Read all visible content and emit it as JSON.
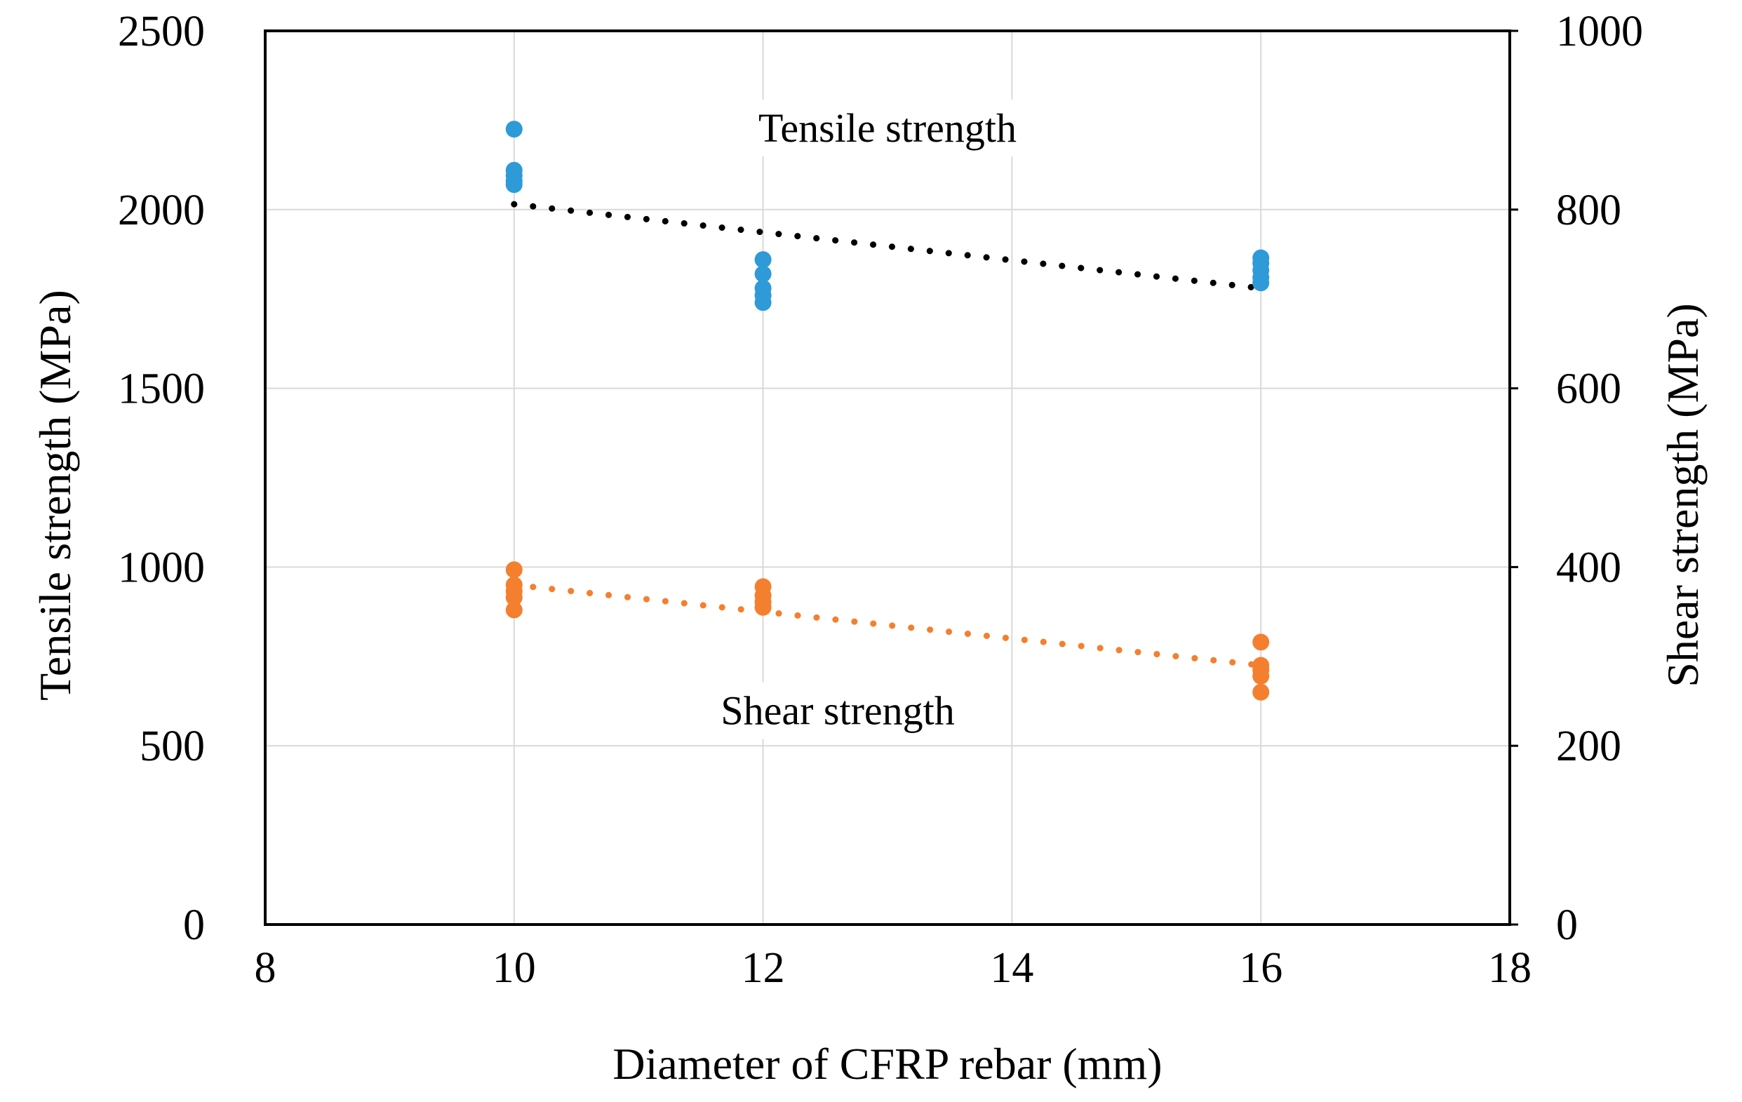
{
  "chart_data": {
    "type": "scatter",
    "title": "",
    "xlabel": "Diameter  of CFRP rebar (mm)",
    "ylabel_left": "Tensile strength (MPa)",
    "ylabel_right": "Shear strength (MPa)",
    "xlim": [
      8,
      18
    ],
    "ylim_left": [
      0,
      2500
    ],
    "ylim_right": [
      0,
      1000
    ],
    "x_ticks": [
      "8",
      "10",
      "12",
      "14",
      "16",
      "18"
    ],
    "y_ticks_left": [
      "0",
      "500",
      "1000",
      "1500",
      "2000",
      "2500"
    ],
    "y_ticks_right": [
      "0",
      "200",
      "400",
      "600",
      "800",
      "1000"
    ],
    "grid": true,
    "colors": {
      "tensile": "#2E9AD8",
      "shear": "#F47F2E",
      "tensile_trend": "#000000",
      "shear_trend": "#F47F2E",
      "grid": "#D9D9D9"
    },
    "series": [
      {
        "name": "Tensile strength",
        "axis": "left",
        "points": [
          {
            "x": 10,
            "y": 2225
          },
          {
            "x": 10,
            "y": 2110
          },
          {
            "x": 10,
            "y": 2095
          },
          {
            "x": 10,
            "y": 2080
          },
          {
            "x": 10,
            "y": 2070
          },
          {
            "x": 12,
            "y": 1860
          },
          {
            "x": 12,
            "y": 1820
          },
          {
            "x": 12,
            "y": 1780
          },
          {
            "x": 12,
            "y": 1760
          },
          {
            "x": 12,
            "y": 1740
          },
          {
            "x": 16,
            "y": 1865
          },
          {
            "x": 16,
            "y": 1850
          },
          {
            "x": 16,
            "y": 1830
          },
          {
            "x": 16,
            "y": 1810
          },
          {
            "x": 16,
            "y": 1795
          }
        ],
        "trendline": {
          "x": [
            10,
            16
          ],
          "y": [
            2015,
            1780
          ]
        }
      },
      {
        "name": "Shear strength",
        "axis": "right",
        "points": [
          {
            "x": 10,
            "y": 397
          },
          {
            "x": 10,
            "y": 380
          },
          {
            "x": 10,
            "y": 373
          },
          {
            "x": 10,
            "y": 366
          },
          {
            "x": 10,
            "y": 352
          },
          {
            "x": 12,
            "y": 378
          },
          {
            "x": 12,
            "y": 368
          },
          {
            "x": 12,
            "y": 361
          },
          {
            "x": 12,
            "y": 355
          },
          {
            "x": 16,
            "y": 316
          },
          {
            "x": 16,
            "y": 290
          },
          {
            "x": 16,
            "y": 285
          },
          {
            "x": 16,
            "y": 278
          },
          {
            "x": 16,
            "y": 260
          }
        ],
        "trendline": {
          "x": [
            10,
            16
          ],
          "y": [
            380,
            290
          ]
        }
      }
    ],
    "annotations": [
      {
        "text": "Tensile strength",
        "x": 13.0,
        "y_left": 2190
      },
      {
        "text": "Shear strength",
        "x": 12.6,
        "y_left": 560
      }
    ]
  }
}
